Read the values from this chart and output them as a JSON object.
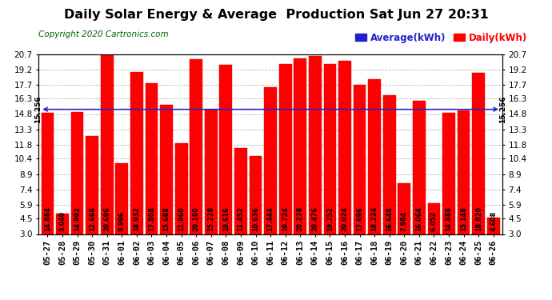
{
  "title": "Daily Solar Energy & Average  Production Sat Jun 27 20:31",
  "copyright": "Copyright 2020 Cartronics.com",
  "average_label": "Average(kWh)",
  "daily_label": "Daily(kWh)",
  "average_value": 15.256,
  "categories": [
    "05-27",
    "05-28",
    "05-29",
    "05-30",
    "05-31",
    "06-01",
    "06-02",
    "06-03",
    "06-04",
    "06-05",
    "06-06",
    "06-07",
    "06-08",
    "06-09",
    "06-10",
    "06-11",
    "06-12",
    "06-13",
    "06-14",
    "06-15",
    "06-16",
    "06-17",
    "06-18",
    "06-19",
    "06-20",
    "06-21",
    "06-22",
    "06-23",
    "06-24",
    "06-25",
    "06-26"
  ],
  "values": [
    14.884,
    5.04,
    14.992,
    12.668,
    20.696,
    9.996,
    18.932,
    17.808,
    15.688,
    11.96,
    20.16,
    15.228,
    19.616,
    11.452,
    10.636,
    17.444,
    19.724,
    20.228,
    20.476,
    19.752,
    20.024,
    17.696,
    18.224,
    16.648,
    7.984,
    16.064,
    6.052,
    14.888,
    15.148,
    18.82,
    4.608
  ],
  "bar_color": "#ff0000",
  "bar_edge_color": "#cc0000",
  "average_line_color": "#2222cc",
  "background_color": "#ffffff",
  "grid_color": "#999999",
  "ymin": 3.0,
  "ymax": 20.7,
  "yticks": [
    3.0,
    4.5,
    5.9,
    7.4,
    8.9,
    10.4,
    11.8,
    13.3,
    14.8,
    16.3,
    17.7,
    19.2,
    20.7
  ],
  "title_fontsize": 11.5,
  "copyright_fontsize": 7.5,
  "legend_fontsize": 8.5,
  "bar_label_fontsize": 5.8,
  "axis_tick_fontsize": 7.5
}
